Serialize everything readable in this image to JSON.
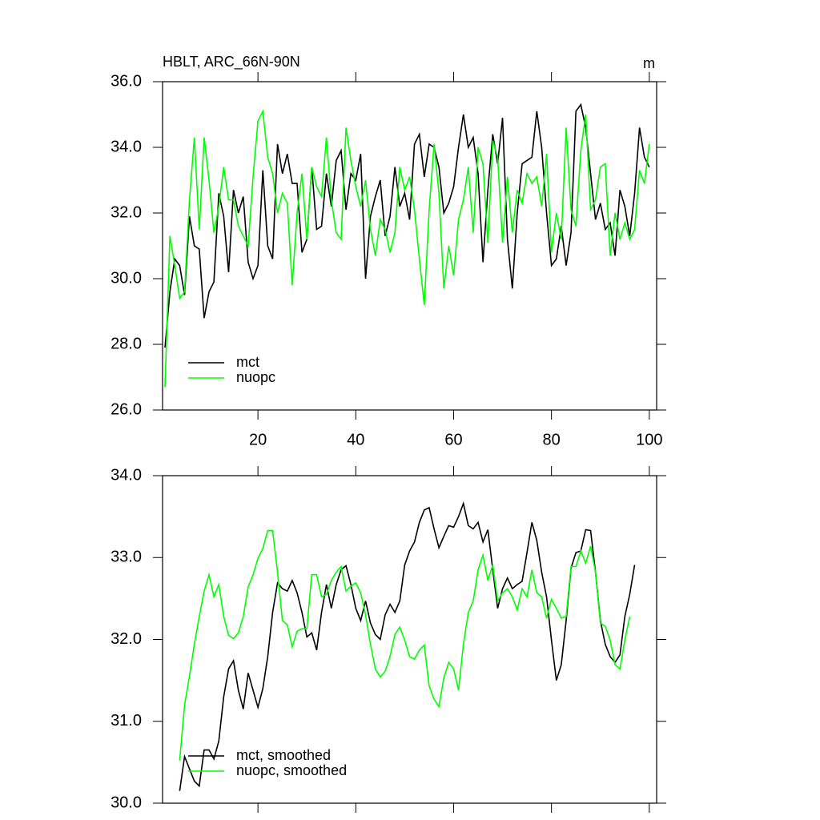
{
  "chart_data": [
    {
      "type": "line",
      "title": "HBLT, ARC_66N-90N",
      "units": "m",
      "x": [
        1,
        2,
        3,
        4,
        5,
        6,
        7,
        8,
        9,
        10,
        11,
        12,
        13,
        14,
        15,
        16,
        17,
        18,
        19,
        20,
        21,
        22,
        23,
        24,
        25,
        26,
        27,
        28,
        29,
        30,
        31,
        32,
        33,
        34,
        35,
        36,
        37,
        38,
        39,
        40,
        41,
        42,
        43,
        44,
        45,
        46,
        47,
        48,
        49,
        50,
        51,
        52,
        53,
        54,
        55,
        56,
        57,
        58,
        59,
        60,
        61,
        62,
        63,
        64,
        65,
        66,
        67,
        68,
        69,
        70,
        71,
        72,
        73,
        74,
        75,
        76,
        77,
        78,
        79,
        80,
        81,
        82,
        83,
        84,
        85,
        86,
        87,
        88,
        89,
        90,
        91,
        92,
        93,
        94,
        95,
        96,
        97,
        98,
        99,
        100
      ],
      "series": [
        {
          "name": "mct",
          "color": "#000000",
          "values": [
            27.9,
            29.6,
            30.6,
            30.4,
            29.5,
            31.9,
            31.0,
            30.9,
            28.8,
            29.6,
            29.9,
            32.6,
            31.9,
            30.2,
            32.7,
            32.0,
            32.5,
            30.5,
            30.0,
            30.4,
            33.3,
            31.0,
            30.6,
            34.1,
            33.2,
            33.8,
            32.9,
            32.9,
            30.8,
            31.2,
            33.4,
            31.5,
            31.6,
            33.2,
            32.2,
            33.6,
            33.9,
            32.1,
            33.2,
            33.0,
            33.8,
            30.0,
            31.9,
            32.5,
            33.0,
            31.3,
            31.9,
            33.4,
            32.2,
            32.6,
            31.8,
            34.1,
            34.4,
            33.1,
            34.1,
            34.0,
            33.4,
            32.0,
            32.3,
            32.8,
            34.0,
            35.0,
            34.0,
            34.3,
            33.2,
            30.5,
            32.7,
            34.4,
            33.5,
            34.9,
            31.2,
            29.7,
            32.0,
            33.5,
            33.6,
            33.7,
            35.1,
            34.0,
            32.0,
            30.4,
            30.6,
            31.6,
            30.4,
            31.4,
            35.1,
            35.3,
            34.6,
            33.2,
            31.8,
            32.3,
            31.5,
            31.7,
            30.7,
            32.7,
            32.2,
            31.3,
            32.6,
            34.6,
            33.7,
            33.4
          ]
        },
        {
          "name": "nuopc",
          "color": "#00ff00",
          "values": [
            26.7,
            31.3,
            30.4,
            29.4,
            29.6,
            32.4,
            34.3,
            31.5,
            34.3,
            33.0,
            31.4,
            32.2,
            33.4,
            32.4,
            32.4,
            31.6,
            31.3,
            31.0,
            33.1,
            34.8,
            35.1,
            33.7,
            33.2,
            32.0,
            32.6,
            32.3,
            29.8,
            32.0,
            33.2,
            31.2,
            33.4,
            32.8,
            32.5,
            34.3,
            32.4,
            31.4,
            31.2,
            34.6,
            33.6,
            32.8,
            32.2,
            33.0,
            31.5,
            30.7,
            31.8,
            31.5,
            30.8,
            31.4,
            33.4,
            32.7,
            33.1,
            32.1,
            30.6,
            29.2,
            32.1,
            34.1,
            32.6,
            29.7,
            31.0,
            30.1,
            31.8,
            32.4,
            33.4,
            31.4,
            34.0,
            33.5,
            31.1,
            34.2,
            33.7,
            31.1,
            33.1,
            31.4,
            32.7,
            32.3,
            33.2,
            32.9,
            33.1,
            32.2,
            33.8,
            30.8,
            32.0,
            31.2,
            34.6,
            32.1,
            31.6,
            33.9,
            35.0,
            32.1,
            32.4,
            33.4,
            33.5,
            30.7,
            32.0,
            31.2,
            31.7,
            31.2,
            31.5,
            33.3,
            32.9,
            34.1
          ]
        }
      ],
      "xlim": [
        0.5,
        101.5
      ],
      "xticks": [
        20,
        40,
        60,
        80,
        100
      ],
      "ylim": [
        26,
        36
      ],
      "yticks": [
        {
          "value": 26,
          "label": "26.0"
        },
        {
          "value": 28,
          "label": "28.0"
        },
        {
          "value": 30,
          "label": "30.0"
        },
        {
          "value": 32,
          "label": "32.0"
        },
        {
          "value": 34,
          "label": "34.0"
        },
        {
          "value": 36,
          "label": "36.0"
        }
      ],
      "legend": "lower left",
      "grid": false
    },
    {
      "type": "line",
      "x": [
        4,
        5,
        6,
        7,
        8,
        9,
        10,
        11,
        12,
        13,
        14,
        15,
        16,
        17,
        18,
        19,
        20,
        21,
        22,
        23,
        24,
        25,
        26,
        27,
        28,
        29,
        30,
        31,
        32,
        33,
        34,
        35,
        36,
        37,
        38,
        39,
        40,
        41,
        42,
        43,
        44,
        45,
        46,
        47,
        48,
        49,
        50,
        51,
        52,
        53,
        54,
        55,
        56,
        57,
        58,
        59,
        60,
        61,
        62,
        63,
        64,
        65,
        66,
        67,
        68,
        69,
        70,
        71,
        72,
        73,
        74,
        75,
        76,
        77,
        78,
        79,
        80,
        81,
        82,
        83,
        84,
        85,
        86,
        87,
        88,
        89,
        90,
        91,
        92,
        93,
        94,
        95,
        96,
        97
      ],
      "series": [
        {
          "name": "mct, smoothed",
          "color": "#000000",
          "values": [
            30.15,
            30.57,
            30.42,
            30.27,
            30.21,
            30.65,
            30.65,
            30.54,
            30.76,
            31.3,
            31.64,
            31.74,
            31.38,
            31.15,
            31.59,
            31.38,
            31.17,
            31.4,
            31.79,
            32.33,
            32.69,
            32.62,
            32.59,
            32.72,
            32.57,
            32.33,
            32.03,
            32.08,
            31.87,
            32.33,
            32.67,
            32.38,
            32.67,
            32.85,
            32.9,
            32.67,
            32.38,
            32.23,
            32.47,
            32.2,
            32.06,
            32.0,
            32.3,
            32.43,
            32.33,
            32.47,
            32.91,
            33.08,
            33.19,
            33.43,
            33.58,
            33.61,
            33.35,
            33.12,
            33.26,
            33.39,
            33.37,
            33.5,
            33.66,
            33.39,
            33.35,
            33.43,
            33.19,
            33.34,
            32.85,
            32.38,
            32.62,
            32.75,
            32.62,
            32.67,
            32.71,
            33.06,
            33.43,
            33.21,
            32.82,
            32.52,
            31.99,
            31.5,
            31.69,
            32.23,
            32.87,
            33.06,
            33.08,
            33.34,
            33.33,
            32.82,
            32.23,
            31.94,
            31.79,
            31.72,
            31.81,
            32.28,
            32.55,
            32.91
          ]
        },
        {
          "name": "nuopc, smoothed",
          "color": "#00ff00",
          "values": [
            30.52,
            31.2,
            31.55,
            31.94,
            32.28,
            32.59,
            32.79,
            32.52,
            32.67,
            32.28,
            32.05,
            32.01,
            32.08,
            32.28,
            32.64,
            32.79,
            32.99,
            33.11,
            33.33,
            33.33,
            32.82,
            32.23,
            32.18,
            31.91,
            32.1,
            32.13,
            32.13,
            32.79,
            32.79,
            32.52,
            32.55,
            32.72,
            32.82,
            32.89,
            32.59,
            32.65,
            32.69,
            32.57,
            32.3,
            31.94,
            31.64,
            31.54,
            31.61,
            31.79,
            32.06,
            32.15,
            31.99,
            31.79,
            31.76,
            31.87,
            31.93,
            31.43,
            31.27,
            31.18,
            31.53,
            31.72,
            31.64,
            31.38,
            31.94,
            32.33,
            32.47,
            32.85,
            33.03,
            32.72,
            32.91,
            32.47,
            32.57,
            32.62,
            32.52,
            32.36,
            32.62,
            32.52,
            32.85,
            32.57,
            32.52,
            32.26,
            32.49,
            32.38,
            32.26,
            32.28,
            32.89,
            32.89,
            33.08,
            32.93,
            33.14,
            32.82,
            32.2,
            32.16,
            31.99,
            31.69,
            31.64,
            31.99,
            32.28,
            null
          ]
        }
      ],
      "xlim": [
        0.5,
        101.5
      ],
      "xticks": [
        20,
        40,
        60,
        80,
        100
      ],
      "ylim": [
        30,
        34
      ],
      "yticks": [
        {
          "value": 30,
          "label": "30.0"
        },
        {
          "value": 31,
          "label": "31.0"
        },
        {
          "value": 32,
          "label": "32.0"
        },
        {
          "value": 33,
          "label": "33.0"
        },
        {
          "value": 34,
          "label": "34.0"
        }
      ],
      "legend": "lower left",
      "grid": false
    }
  ]
}
